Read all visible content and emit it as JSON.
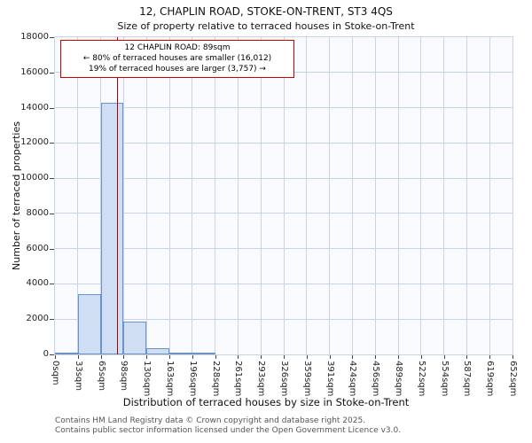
{
  "title": {
    "line1": "12, CHAPLIN ROAD, STOKE-ON-TRENT, ST3 4QS",
    "line2": "Size of property relative to terraced houses in Stoke-on-Trent"
  },
  "axes": {
    "y_label": "Number of terraced properties",
    "x_label": "Distribution of terraced houses by size in Stoke-on-Trent"
  },
  "footer": {
    "line1": "Contains HM Land Registry data © Crown copyright and database right 2025.",
    "line2": "Contains public sector information licensed under the Open Government Licence v3.0."
  },
  "chart_data": {
    "type": "bar",
    "title": "Size of property relative to terraced houses in Stoke-on-Trent",
    "xlabel": "Distribution of terraced houses by size in Stoke-on-Trent",
    "ylabel": "Number of terraced properties",
    "x_tick_labels": [
      "0sqm",
      "33sqm",
      "65sqm",
      "98sqm",
      "130sqm",
      "163sqm",
      "196sqm",
      "228sqm",
      "261sqm",
      "293sqm",
      "326sqm",
      "359sqm",
      "391sqm",
      "424sqm",
      "456sqm",
      "489sqm",
      "522sqm",
      "554sqm",
      "587sqm",
      "619sqm",
      "652sqm"
    ],
    "bin_edges_sqm": [
      0,
      33,
      65,
      98,
      130,
      163,
      196,
      228,
      261,
      293,
      326,
      359,
      391,
      424,
      456,
      489,
      522,
      554,
      587,
      619,
      652
    ],
    "values": [
      60,
      3400,
      14300,
      1850,
      350,
      100,
      50,
      0,
      0,
      0,
      0,
      0,
      0,
      0,
      0,
      0,
      0,
      0,
      0,
      0
    ],
    "y_ticks": [
      0,
      2000,
      4000,
      6000,
      8000,
      10000,
      12000,
      14000,
      16000,
      18000
    ],
    "ylim": [
      0,
      18000
    ],
    "xlim_sqm": [
      0,
      652
    ],
    "grid": true,
    "legend_position": "none",
    "marker": {
      "value_sqm": 89,
      "label": "12 CHAPLIN ROAD: 89sqm"
    },
    "annotation": {
      "line1": "12 CHAPLIN ROAD: 89sqm",
      "line2": "← 80% of terraced houses are smaller (16,012)",
      "line3": "19% of terraced houses are larger (3,757) →"
    },
    "colors": {
      "bar_fill": "#cfdef2",
      "bar_border": "#6b93c9",
      "marker_line": "#aa0000",
      "annotation_border": "#cc0000",
      "grid": "#c9d4e6",
      "plot_bg": "#f8fafd"
    }
  }
}
